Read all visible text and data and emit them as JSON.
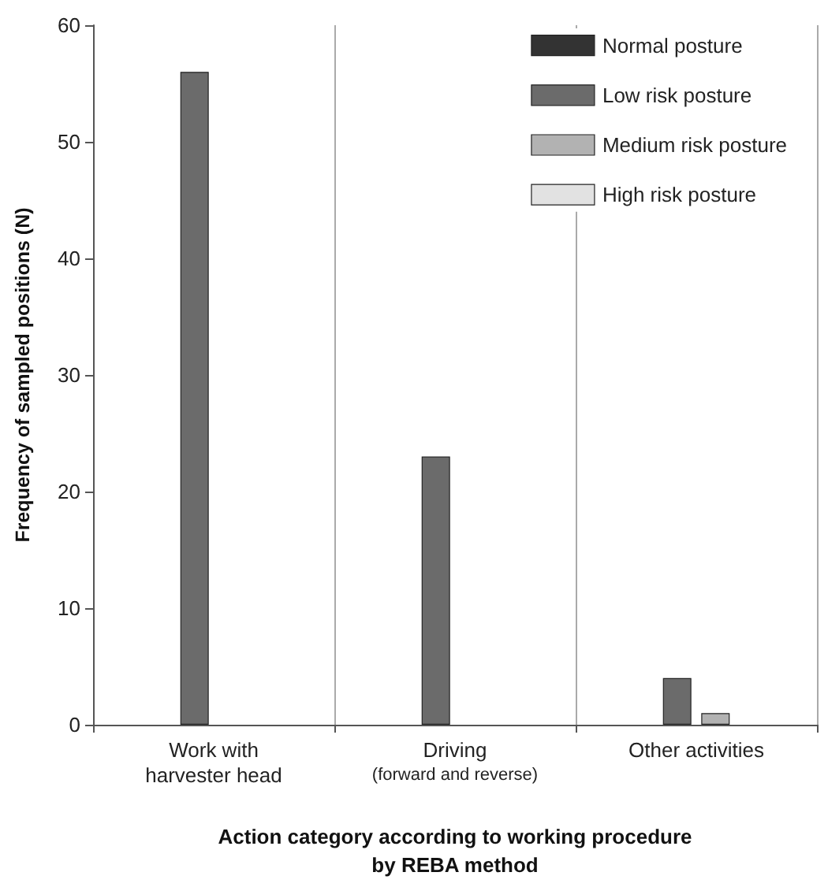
{
  "chart_data": {
    "type": "bar",
    "xlabel": "Action category according to working procedure\nby REBA method",
    "ylabel": "Frequency of sampled positions (N)",
    "categories": [
      "Work with\nharvester head",
      "Driving\n(forward and reverse)",
      "Other activities"
    ],
    "series": [
      {
        "name": "Normal posture",
        "color": "#333333",
        "values": [
          0,
          0,
          0
        ]
      },
      {
        "name": "Low risk posture",
        "color": "#6b6b6b",
        "values": [
          56,
          23,
          4
        ]
      },
      {
        "name": "Medium risk posture",
        "color": "#b2b2b2",
        "values": [
          0,
          0,
          1
        ]
      },
      {
        "name": "High risk posture",
        "color": "#e2e2e2",
        "values": [
          0,
          0,
          0
        ]
      }
    ],
    "ylim": [
      0,
      60
    ],
    "yticks": [
      0,
      10,
      20,
      30,
      40,
      50,
      60
    ],
    "grid": "x",
    "legend": "top right"
  }
}
